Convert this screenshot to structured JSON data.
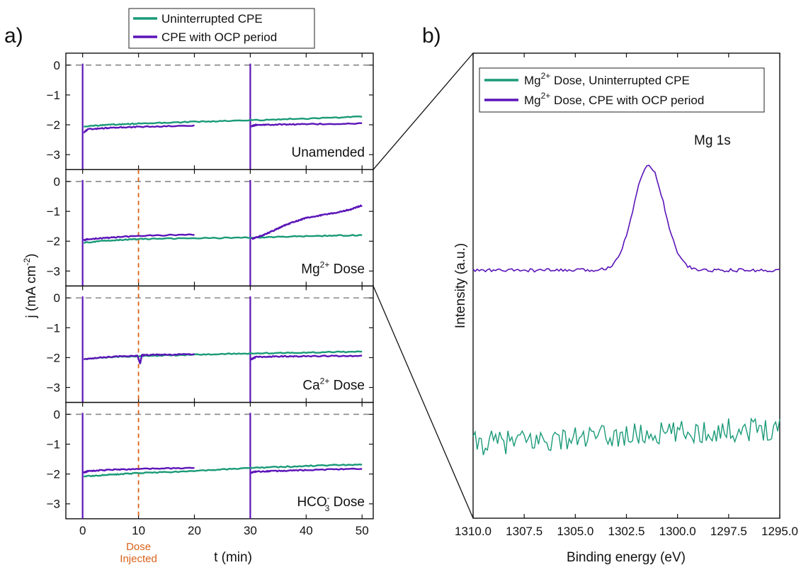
{
  "figure": {
    "panel_a_label": "a)",
    "panel_b_label": "b)",
    "colors": {
      "green": "#1a9a78",
      "purple": "#5b14b8",
      "dose": "#d9621a",
      "zero_line": "#888888",
      "axis": "#111111"
    }
  },
  "chart_data": [
    {
      "type": "line",
      "xlabel": "t (min)",
      "ylabel_parts": {
        "main": "j (mA cm",
        "sup": "-2",
        "end": ")"
      },
      "xlim": [
        -3,
        52
      ],
      "xticks": [
        0,
        10,
        20,
        30,
        40,
        50
      ],
      "ylim": [
        -3.5,
        0.4
      ],
      "yticks": [
        0,
        -1,
        -2,
        -3
      ],
      "grid": false,
      "legend": {
        "placement": "top-center",
        "entries": [
          {
            "label": "Uninterrupted CPE",
            "color": "#1a9a78"
          },
          {
            "label": "CPE with OCP period",
            "color": "#5b14b8"
          }
        ]
      },
      "annotation": {
        "x": 10,
        "lines": [
          "Dose",
          "Injected"
        ],
        "color": "#d9621a"
      },
      "subplots": [
        {
          "label": {
            "main": "Unamended",
            "ion": "",
            "sup": "",
            "sub": "",
            "rest": ""
          },
          "dose_line": false,
          "series": [
            {
              "name": "Uninterrupted CPE",
              "color": "#1a9a78",
              "segments": [
                {
                  "x": [
                    0.2,
                    5,
                    10,
                    20,
                    30,
                    40,
                    50
                  ],
                  "y": [
                    -2.05,
                    -2.0,
                    -1.96,
                    -1.9,
                    -1.85,
                    -1.79,
                    -1.73
                  ]
                }
              ]
            },
            {
              "name": "CPE with OCP period",
              "color": "#5b14b8",
              "segments": [
                {
                  "x": [
                    0.2,
                    1,
                    5,
                    10,
                    20
                  ],
                  "y": [
                    -2.25,
                    -2.15,
                    -2.1,
                    -2.07,
                    -2.03
                  ]
                },
                {
                  "x": [
                    30.2,
                    31,
                    35,
                    40,
                    50
                  ],
                  "y": [
                    -2.05,
                    -2.0,
                    -1.99,
                    -1.98,
                    -1.96
                  ]
                }
              ]
            }
          ]
        },
        {
          "label": {
            "main": "",
            "ion": "Mg",
            "sup": "2+",
            "sub": "",
            "rest": " Dose"
          },
          "dose_line": true,
          "series": [
            {
              "name": "Uninterrupted CPE",
              "color": "#1a9a78",
              "segments": [
                {
                  "x": [
                    0.2,
                    5,
                    10,
                    20,
                    30,
                    40,
                    50
                  ],
                  "y": [
                    -2.05,
                    -1.97,
                    -1.93,
                    -1.9,
                    -1.88,
                    -1.83,
                    -1.8
                  ]
                }
              ]
            },
            {
              "name": "CPE with OCP period",
              "color": "#5b14b8",
              "segments": [
                {
                  "x": [
                    0.2,
                    1,
                    5,
                    10,
                    20
                  ],
                  "y": [
                    -1.97,
                    -1.93,
                    -1.88,
                    -1.82,
                    -1.78
                  ]
                },
                {
                  "x": [
                    30.2,
                    32,
                    34,
                    36,
                    38,
                    40,
                    43,
                    46,
                    48,
                    50
                  ],
                  "y": [
                    -1.92,
                    -1.82,
                    -1.66,
                    -1.48,
                    -1.34,
                    -1.22,
                    -1.12,
                    -1.02,
                    -0.93,
                    -0.8
                  ]
                }
              ]
            }
          ]
        },
        {
          "label": {
            "main": "",
            "ion": "Ca",
            "sup": "2+",
            "sub": "",
            "rest": " Dose"
          },
          "dose_line": true,
          "series": [
            {
              "name": "Uninterrupted CPE",
              "color": "#1a9a78",
              "segments": [
                {
                  "x": [
                    0.2,
                    5,
                    10,
                    20,
                    30,
                    40,
                    50
                  ],
                  "y": [
                    -2.05,
                    -1.98,
                    -1.95,
                    -1.9,
                    -1.86,
                    -1.83,
                    -1.8
                  ]
                }
              ]
            },
            {
              "name": "CPE with OCP period",
              "color": "#5b14b8",
              "segments": [
                {
                  "x": [
                    0.2,
                    5,
                    9.8,
                    10.3,
                    10.6,
                    11,
                    15,
                    20
                  ],
                  "y": [
                    -2.05,
                    -1.97,
                    -1.93,
                    -2.2,
                    -1.92,
                    -1.91,
                    -1.9,
                    -1.89
                  ]
                },
                {
                  "x": [
                    30.2,
                    31,
                    35,
                    40,
                    50
                  ],
                  "y": [
                    -2.05,
                    -1.98,
                    -1.96,
                    -1.95,
                    -1.94
                  ]
                }
              ]
            }
          ]
        },
        {
          "label": {
            "main": "",
            "ion": "HCO",
            "sup": "-",
            "sub": "3",
            "rest": " Dose"
          },
          "dose_line": true,
          "series": [
            {
              "name": "Uninterrupted CPE",
              "color": "#1a9a78",
              "segments": [
                {
                  "x": [
                    0.2,
                    5,
                    10,
                    20,
                    30,
                    40,
                    50
                  ],
                  "y": [
                    -2.08,
                    -2.02,
                    -1.97,
                    -1.9,
                    -1.8,
                    -1.73,
                    -1.68
                  ]
                }
              ]
            },
            {
              "name": "CPE with OCP period",
              "color": "#5b14b8",
              "segments": [
                {
                  "x": [
                    0.2,
                    1,
                    5,
                    10,
                    20
                  ],
                  "y": [
                    -1.95,
                    -1.9,
                    -1.86,
                    -1.83,
                    -1.8
                  ]
                },
                {
                  "x": [
                    30.2,
                    31,
                    35,
                    40,
                    50
                  ],
                  "y": [
                    -1.95,
                    -1.92,
                    -1.9,
                    -1.87,
                    -1.82
                  ]
                }
              ]
            }
          ]
        }
      ]
    },
    {
      "type": "line",
      "xlabel": "Binding energy (eV)",
      "ylabel": "Intensity (a.u.)",
      "xlim": [
        1310.0,
        1295.0
      ],
      "xticks": [
        1310.0,
        1307.5,
        1305.0,
        1302.5,
        1300.0,
        1297.5,
        1295.0
      ],
      "xtick_labels": [
        "1310.0",
        "1307.5",
        "1305.0",
        "1302.5",
        "1300.0",
        "1297.5",
        "1295.0"
      ],
      "ylim": [
        0,
        100
      ],
      "grid": false,
      "annotation_text": "Mg 1s",
      "legend": {
        "placement": "top-left",
        "entries": [
          {
            "ion": "Mg",
            "sup": "2+",
            "rest": " Dose, Uninterrupted CPE",
            "color": "#1a9a78"
          },
          {
            "ion": "Mg",
            "sup": "2+",
            "rest": " Dose, CPE with OCP period",
            "color": "#5b14b8"
          }
        ]
      },
      "series": [
        {
          "name": "Mg2+ Dose, CPE with OCP period",
          "color": "#5b14b8",
          "peak_center": 1301.4,
          "peak_width": 0.75,
          "peak_height": 22.6,
          "baseline": 53.3,
          "noise": 0.35,
          "step": 0.1
        },
        {
          "name": "Mg2+ Dose, Uninterrupted CPE",
          "color": "#1a9a78",
          "baseline_start": 16.0,
          "baseline_end": 19.5,
          "noise": 2.6,
          "step": 0.1
        }
      ]
    }
  ]
}
